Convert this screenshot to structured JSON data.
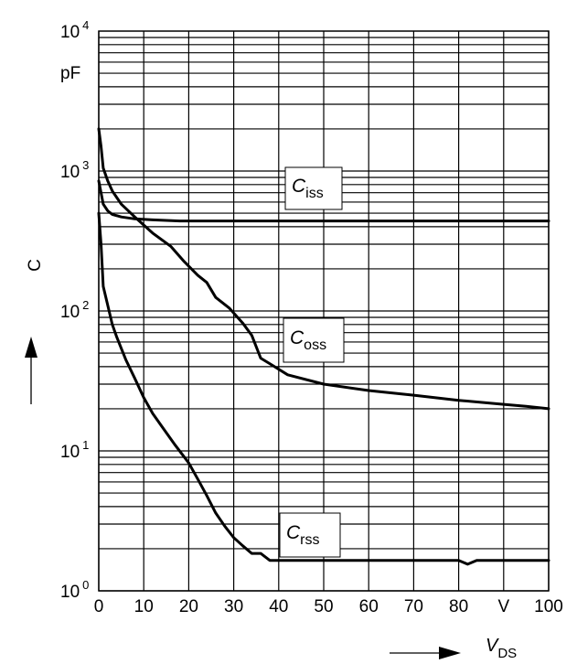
{
  "chart_data": {
    "type": "line",
    "xlabel_symbol": "V",
    "xlabel_subscript": "DS",
    "ylabel": "C",
    "x_unit": "V",
    "y_unit": "pF",
    "xlim": [
      0,
      100
    ],
    "ylim": [
      1,
      10000
    ],
    "yscale": "log",
    "x_ticks": [
      "0",
      "10",
      "20",
      "30",
      "40",
      "50",
      "60",
      "70",
      "80",
      "V",
      "100"
    ],
    "y_ticks": [
      {
        "base": "10",
        "exp": "0",
        "value": 1
      },
      {
        "base": "10",
        "exp": "1",
        "value": 10
      },
      {
        "base": "10",
        "exp": "2",
        "value": 100
      },
      {
        "base": "10",
        "exp": "3",
        "value": 1000
      },
      {
        "base": "10",
        "exp": "4",
        "value": 10000
      }
    ],
    "grid": true,
    "series": [
      {
        "name": "iss",
        "symbol": "C",
        "subscript": "iss",
        "x": [
          0,
          1,
          2,
          3,
          5,
          8,
          12,
          18,
          30,
          50,
          70,
          100
        ],
        "y": [
          850,
          580,
          520,
          490,
          470,
          455,
          448,
          440,
          440,
          440,
          440,
          440
        ]
      },
      {
        "name": "oss",
        "symbol": "C",
        "subscript": "oss",
        "x": [
          0,
          0.5,
          1,
          2,
          3,
          5,
          8,
          12,
          16,
          19,
          22,
          24,
          26,
          29,
          32,
          34,
          36,
          38,
          42,
          50,
          60,
          70,
          80,
          90,
          95,
          100
        ],
        "y": [
          2000,
          1500,
          1050,
          850,
          720,
          580,
          470,
          360,
          290,
          225,
          180,
          160,
          125,
          105,
          82,
          67,
          46,
          42,
          35,
          30,
          27,
          25,
          23,
          21.5,
          20.8,
          20
        ]
      },
      {
        "name": "rss",
        "symbol": "C",
        "subscript": "rss",
        "x": [
          0,
          0.5,
          1,
          2,
          3,
          4,
          6,
          8,
          10,
          12,
          14,
          17,
          20,
          22,
          24,
          26,
          28,
          30,
          32,
          34,
          36,
          38,
          40,
          60,
          80,
          82,
          84,
          100
        ],
        "y": [
          500,
          300,
          150,
          110,
          80,
          65,
          45,
          33,
          24,
          18.5,
          15,
          11,
          8.2,
          6.3,
          4.8,
          3.6,
          2.9,
          2.4,
          2.1,
          1.85,
          1.85,
          1.65,
          1.65,
          1.65,
          1.65,
          1.55,
          1.65,
          1.65
        ]
      }
    ]
  }
}
